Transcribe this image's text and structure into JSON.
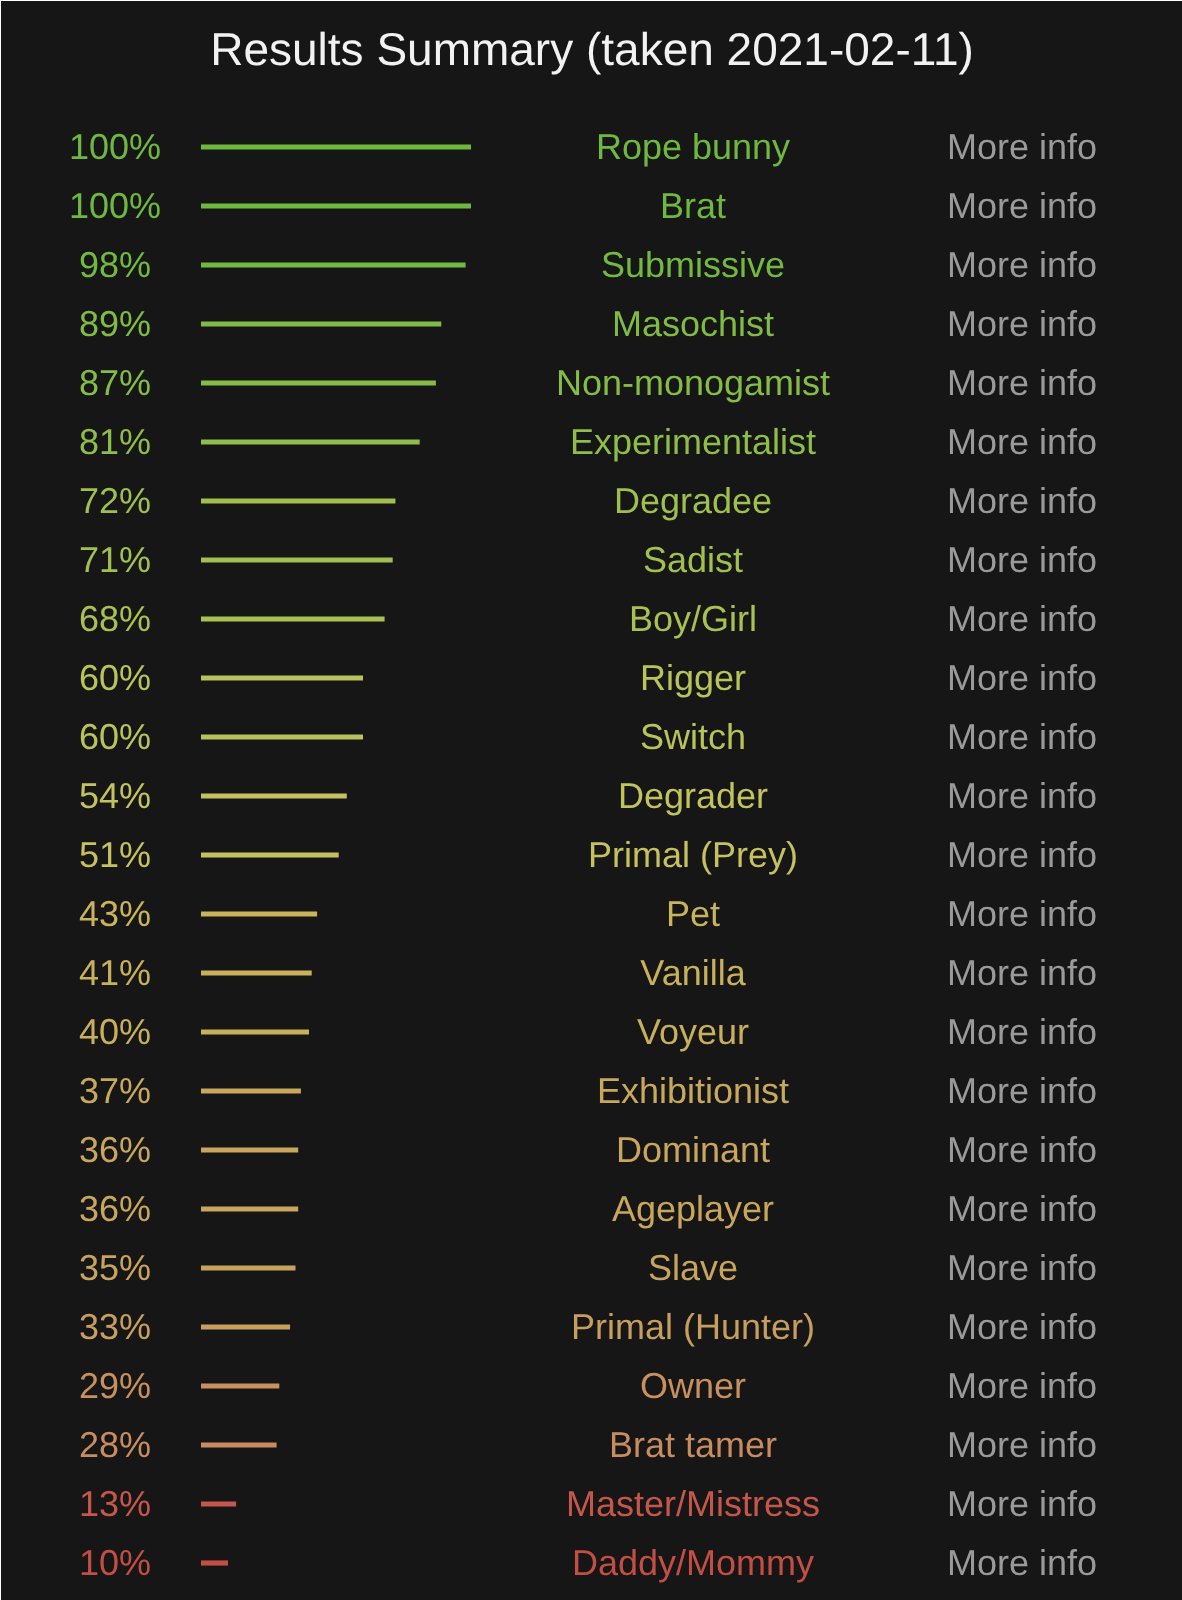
{
  "chart_data": {
    "type": "bar",
    "orientation": "horizontal",
    "title": "Results Summary (taken 2021-02-11)",
    "categories": [
      "Rope bunny",
      "Brat",
      "Submissive",
      "Masochist",
      "Non-monogamist",
      "Experimentalist",
      "Degradee",
      "Sadist",
      "Boy/Girl",
      "Rigger",
      "Switch",
      "Degrader",
      "Primal (Prey)",
      "Pet",
      "Vanilla",
      "Voyeur",
      "Exhibitionist",
      "Dominant",
      "Ageplayer",
      "Slave",
      "Primal (Hunter)",
      "Owner",
      "Brat tamer",
      "Master/Mistress",
      "Daddy/Mommy"
    ],
    "values": [
      100,
      100,
      98,
      89,
      87,
      81,
      72,
      71,
      68,
      60,
      60,
      54,
      51,
      43,
      41,
      40,
      37,
      36,
      36,
      35,
      33,
      29,
      28,
      13,
      10
    ],
    "value_labels": [
      "100%",
      "100%",
      "98%",
      "89%",
      "87%",
      "81%",
      "72%",
      "71%",
      "68%",
      "60%",
      "60%",
      "54%",
      "51%",
      "43%",
      "41%",
      "40%",
      "37%",
      "36%",
      "36%",
      "35%",
      "33%",
      "29%",
      "28%",
      "13%",
      "10%"
    ],
    "colors": [
      "#6fb83f",
      "#6fb83f",
      "#72b940",
      "#80bb45",
      "#84bc46",
      "#8ebd49",
      "#9fbf4f",
      "#a1c050",
      "#a8c152",
      "#b8c45a",
      "#b8c45a",
      "#c2c35d",
      "#c6c15e",
      "#c9b45c",
      "#c9b15c",
      "#c9af5c",
      "#c8a85d",
      "#c8a65d",
      "#c8a65d",
      "#c8a35e",
      "#c89e5f",
      "#c8905f",
      "#c88c60",
      "#c4574a",
      "#c24e44"
    ],
    "annotations": [
      "More info",
      "More info",
      "More info",
      "More info",
      "More info",
      "More info",
      "More info",
      "More info",
      "More info",
      "More info",
      "More info",
      "More info",
      "More info",
      "More info",
      "More info",
      "More info",
      "More info",
      "More info",
      "More info",
      "More info",
      "More info",
      "More info",
      "More info",
      "More info",
      "More info"
    ],
    "grid": false
  }
}
